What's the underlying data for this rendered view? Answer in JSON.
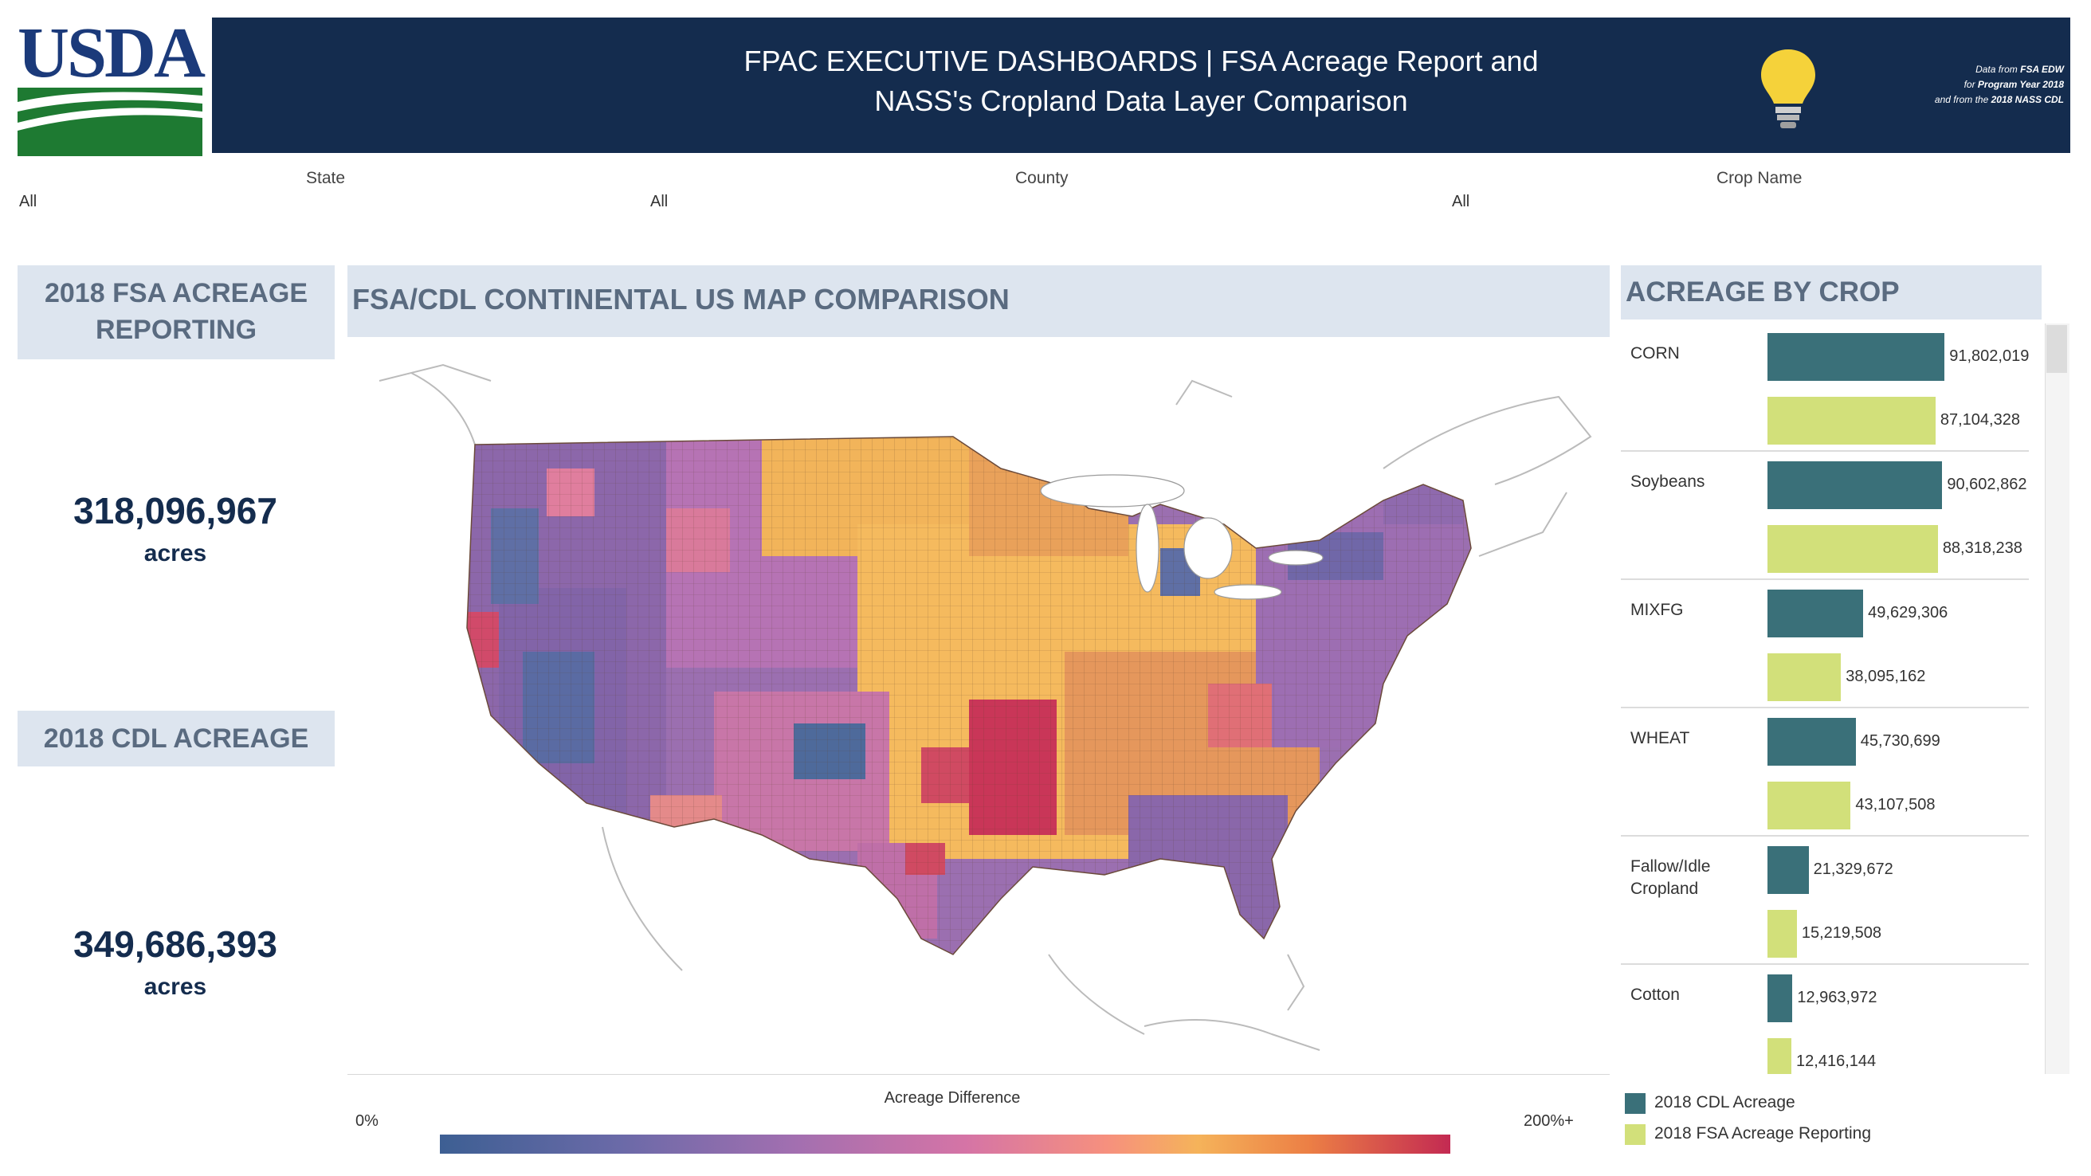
{
  "header": {
    "logo_text": "USDA",
    "title_line1": "FPAC EXECUTIVE DASHBOARDS | FSA Acreage Report and",
    "title_line2": "NASS's Cropland Data Layer Comparison",
    "note_line1_a": "Data from ",
    "note_line1_b": "FSA EDW",
    "note_line2_a": "for ",
    "note_line2_b": "Program Year 2018",
    "note_line3_a": "and from the ",
    "note_line3_b": "2018 NASS CDL"
  },
  "filters": {
    "state_label": "State",
    "state_value": "All",
    "county_label": "County",
    "county_value": "All",
    "crop_label": "Crop Name",
    "crop_value": "All"
  },
  "kpis": {
    "fsa_header": "2018 FSA ACREAGE REPORTING",
    "fsa_value": "318,096,967",
    "fsa_unit": "acres",
    "cdl_header": "2018 CDL ACREAGE",
    "cdl_value": "349,686,393",
    "cdl_unit": "acres"
  },
  "map": {
    "title": "FSA/CDL CONTINENTAL US MAP COMPARISON",
    "legend_title": "Acreage Difference",
    "legend_min": "0%",
    "legend_max": "200%+"
  },
  "colors": {
    "cdl": "#3a7079",
    "fsa": "#d2e07a",
    "header_bg": "#142c4e",
    "panel_bg": "#dde5ef"
  },
  "chart_data": {
    "type": "bar",
    "title": "ACREAGE BY CROP",
    "categories": [
      "CORN",
      "Soybeans",
      "MIXFG",
      "WHEAT",
      "Fallow/Idle Cropland",
      "Cotton"
    ],
    "series": [
      {
        "name": "2018 CDL Acreage",
        "values": [
          91802019,
          90602862,
          49629306,
          45730699,
          21329672,
          12963972
        ]
      },
      {
        "name": "2018 FSA Acreage Reporting",
        "values": [
          87104328,
          88318238,
          38095162,
          43107508,
          15219508,
          12416144
        ]
      }
    ],
    "value_labels": {
      "cdl": [
        "91,802,019",
        "90,602,862",
        "49,629,306",
        "45,730,699",
        "21,329,672",
        "12,963,972"
      ],
      "fsa": [
        "87,104,328",
        "88,318,238",
        "38,095,162",
        "43,107,508",
        "15,219,508",
        "12,416,144"
      ]
    },
    "legend_position": "bottom",
    "xlim": [
      0,
      95000000
    ]
  }
}
